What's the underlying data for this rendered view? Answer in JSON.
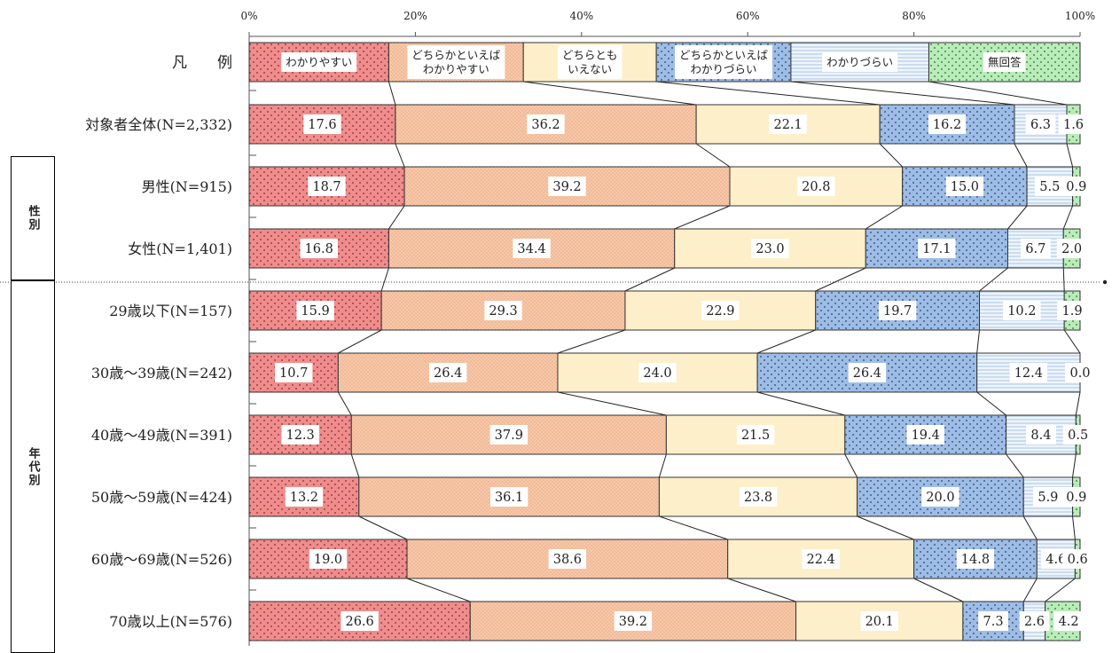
{
  "chart_data": {
    "type": "bar",
    "stacked": "100%",
    "orientation": "horizontal",
    "xlim": [
      0,
      100
    ],
    "x_ticks": [
      "0%",
      "20%",
      "40%",
      "60%",
      "80%",
      "100%"
    ],
    "legend_row_label": "凡　　例",
    "series": [
      {
        "name": "わかりやすい",
        "color": "#f08c8c",
        "pattern": "dots"
      },
      {
        "name": "どちらかといえば\nわかりやすい",
        "color": "#f8c8a8",
        "pattern": "fine"
      },
      {
        "name": "どちらとも\nいえない",
        "color": "#fdefc9",
        "pattern": "none"
      },
      {
        "name": "どちらかといえば\nわかりづらい",
        "color": "#9dbde6",
        "pattern": "dots"
      },
      {
        "name": "わかりづらい",
        "color": "#dde9f6",
        "pattern": "hlines"
      },
      {
        "name": "無回答",
        "color": "#b8ecb8",
        "pattern": "dots"
      }
    ],
    "categories": [
      "対象者全体(N=2,332)",
      "男性(N=915)",
      "女性(N=1,401)",
      "29歳以下(N=157)",
      "30歳～39歳(N=242)",
      "40歳～49歳(N=391)",
      "50歳～59歳(N=424)",
      "60歳～69歳(N=526)",
      "70歳以上(N=576)"
    ],
    "values": [
      [
        17.6,
        36.2,
        22.1,
        16.2,
        6.3,
        1.6
      ],
      [
        18.7,
        39.2,
        20.8,
        15.0,
        5.5,
        0.9
      ],
      [
        16.8,
        34.4,
        23.0,
        17.1,
        6.7,
        2.0
      ],
      [
        15.9,
        29.3,
        22.9,
        19.7,
        10.2,
        1.9
      ],
      [
        10.7,
        26.4,
        24.0,
        26.4,
        12.4,
        0.0
      ],
      [
        12.3,
        37.9,
        21.5,
        19.4,
        8.4,
        0.5
      ],
      [
        13.2,
        36.1,
        23.8,
        20.0,
        5.9,
        0.9
      ],
      [
        19.0,
        38.6,
        22.4,
        14.8,
        4.6,
        0.6
      ],
      [
        26.6,
        39.2,
        20.1,
        7.3,
        2.6,
        4.2
      ]
    ],
    "value_labels": [
      [
        "17.6",
        "36.2",
        "22.1",
        "16.2",
        "6.3",
        "1.6"
      ],
      [
        "18.7",
        "39.2",
        "20.8",
        "15.0",
        "5.5",
        "0.9"
      ],
      [
        "16.8",
        "34.4",
        "23.0",
        "17.1",
        "6.7",
        "2.0"
      ],
      [
        "15.9",
        "29.3",
        "22.9",
        "19.7",
        "10.2",
        "1.9"
      ],
      [
        "10.7",
        "26.4",
        "24.0",
        "26.4",
        "12.4",
        "0.0"
      ],
      [
        "12.3",
        "37.9",
        "21.5",
        "19.4",
        "8.4",
        "0.5"
      ],
      [
        "13.2",
        "36.1",
        "23.8",
        "20.0",
        "5.9",
        "0.9"
      ],
      [
        "19.0",
        "38.6",
        "22.4",
        "14.8",
        "4.6",
        "0.6"
      ],
      [
        "26.6",
        "39.2",
        "20.1",
        "7.3",
        "2.6",
        "4.2"
      ]
    ],
    "groups": [
      {
        "label": "性別",
        "rows": [
          1,
          2
        ]
      },
      {
        "label": "年代別",
        "rows": [
          3,
          8
        ]
      }
    ]
  }
}
